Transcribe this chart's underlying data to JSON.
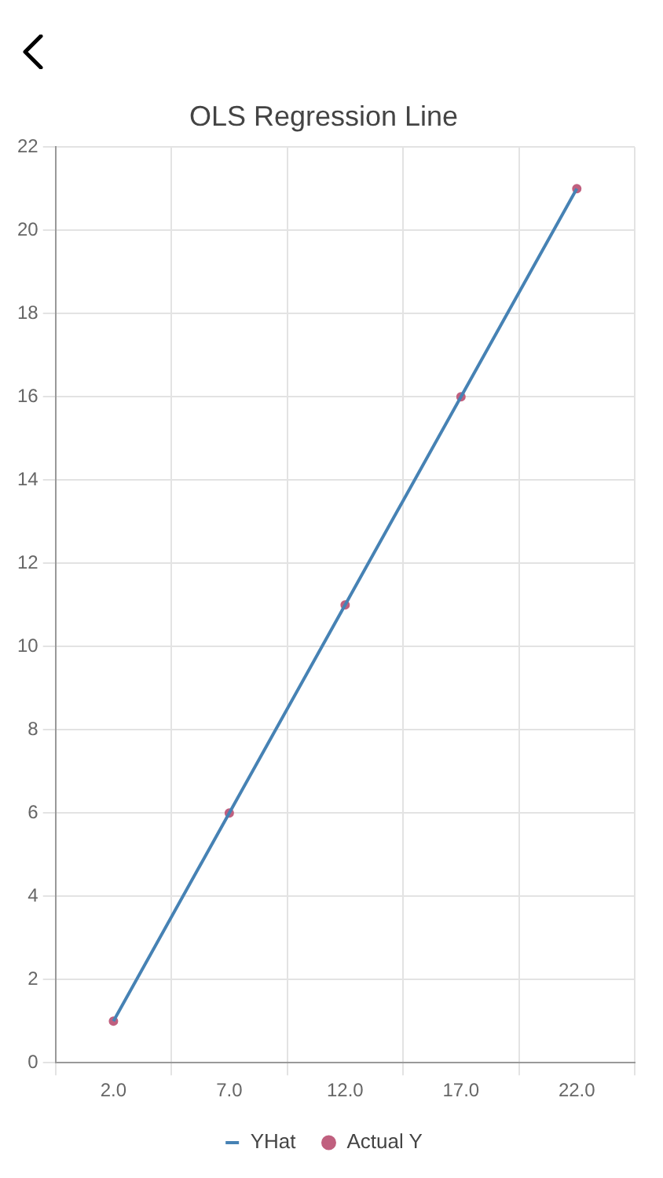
{
  "chart_data": {
    "type": "line",
    "title": "OLS Regression Line",
    "categories": [
      "2.0",
      "7.0",
      "12.0",
      "17.0",
      "22.0"
    ],
    "ylim": [
      0,
      22
    ],
    "yticks": [
      0,
      2,
      4,
      6,
      8,
      10,
      12,
      14,
      16,
      18,
      20,
      22
    ],
    "grid": true,
    "legend": "bottom",
    "series": [
      {
        "name": "YHat",
        "type": "line",
        "color": "#4682b4",
        "values": [
          1,
          6,
          11,
          16,
          21
        ],
        "marker": "none",
        "line_style": "solid"
      },
      {
        "name": "Actual Y",
        "type": "scatter",
        "color": "#c0607f",
        "values": [
          1,
          6,
          11,
          16,
          21
        ],
        "marker": "circle"
      }
    ]
  }
}
